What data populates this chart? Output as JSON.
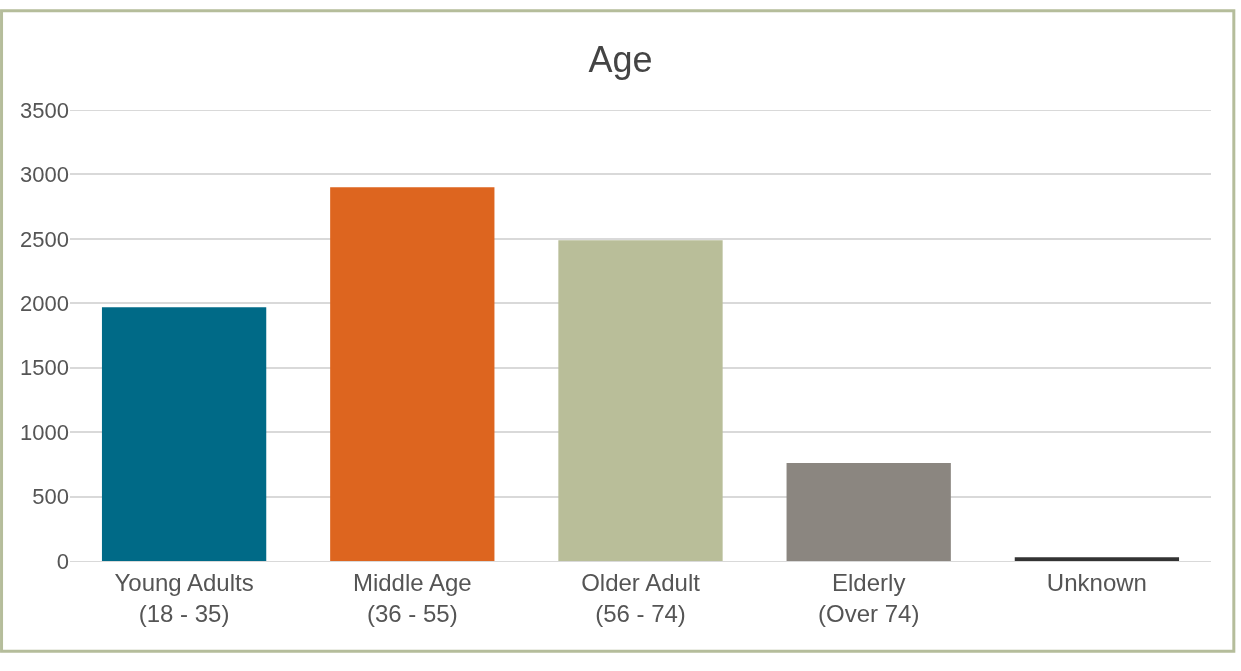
{
  "chart_data": {
    "type": "bar",
    "title": "Age",
    "categories": [
      "Young Adults\n(18 - 35)",
      "Middle Age\n(36 - 55)",
      "Older Adult\n(56 - 74)",
      "Elderly\n(Over 74)",
      "Unknown"
    ],
    "values": [
      1970,
      2900,
      2490,
      760,
      30
    ],
    "colors": [
      "#006a87",
      "#dd651f",
      "#b9be99",
      "#8b8680",
      "#333333"
    ],
    "ylim": [
      0,
      3500
    ],
    "yticks": [
      0,
      500,
      1000,
      1500,
      2000,
      2500,
      3000,
      3500
    ],
    "grid": "y"
  }
}
